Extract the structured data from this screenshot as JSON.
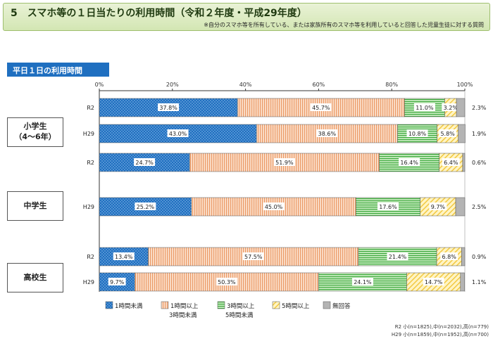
{
  "header": {
    "title": "5　スマホ等の１日当たりの利用時間（令和２年度・平成29年度）",
    "subtitle": "※自分のスマホ等を所有している、または家族所有のスマホ等を利用していると回答した児童生徒に対する質問"
  },
  "section_label": "平日１日の利用時間",
  "groups": [
    {
      "label": "小学生\n（4～6年）"
    },
    {
      "label": "中学生"
    },
    {
      "label": "高校生"
    }
  ],
  "notes": {
    "r2": "R2 小(n=1825),中(n=2032),高(n=779)",
    "h29": "H29 小(n=1859),中(n=1952),高(n=700)"
  },
  "chart_data": {
    "type": "bar",
    "orientation": "horizontal",
    "stacked": true,
    "xlim": [
      0,
      100
    ],
    "x_ticks": [
      "0%",
      "20%",
      "40%",
      "60%",
      "80%",
      "100%"
    ],
    "categories": [
      "R2",
      "H29",
      "R2",
      "H29",
      "R2",
      "H29"
    ],
    "groups": [
      "小学生（4～6年）",
      "中学生",
      "高校生"
    ],
    "series": [
      {
        "name": "1時間未満",
        "color": "#1f6fc0",
        "values": [
          37.8,
          43.0,
          24.7,
          25.2,
          13.4,
          9.7
        ]
      },
      {
        "name": "1時間以上\n3時間未満",
        "color": "#f0a070",
        "values": [
          45.7,
          38.6,
          51.9,
          45.0,
          57.5,
          50.3
        ]
      },
      {
        "name": "3時間以上\n5時間未満",
        "color": "#4ab04a",
        "values": [
          11.0,
          10.8,
          16.4,
          17.6,
          21.4,
          24.1
        ]
      },
      {
        "name": "5時間以上",
        "color": "#f4cc40",
        "values": [
          3.2,
          5.8,
          6.4,
          9.7,
          6.8,
          14.7
        ]
      },
      {
        "name": "無回答",
        "color": "#b0b0b0",
        "values": [
          2.3,
          1.9,
          0.6,
          2.5,
          0.9,
          1.1
        ]
      }
    ],
    "data_labels": [
      [
        "37.8%",
        "45.7%",
        "11.0%",
        "3.2%",
        "2.3%"
      ],
      [
        "43.0%",
        "38.6%",
        "10.8%",
        "5.8%",
        "1.9%"
      ],
      [
        "24.7%",
        "51.9%",
        "16.4%",
        "6.4%",
        "0.6%"
      ],
      [
        "25.2%",
        "45.0%",
        "17.6%",
        "9.7%",
        "2.5%"
      ],
      [
        "13.4%",
        "57.5%",
        "21.4%",
        "6.8%",
        "0.9%"
      ],
      [
        "9.7%",
        "50.3%",
        "24.1%",
        "14.7%",
        "1.1%"
      ]
    ],
    "legend_position": "bottom"
  }
}
